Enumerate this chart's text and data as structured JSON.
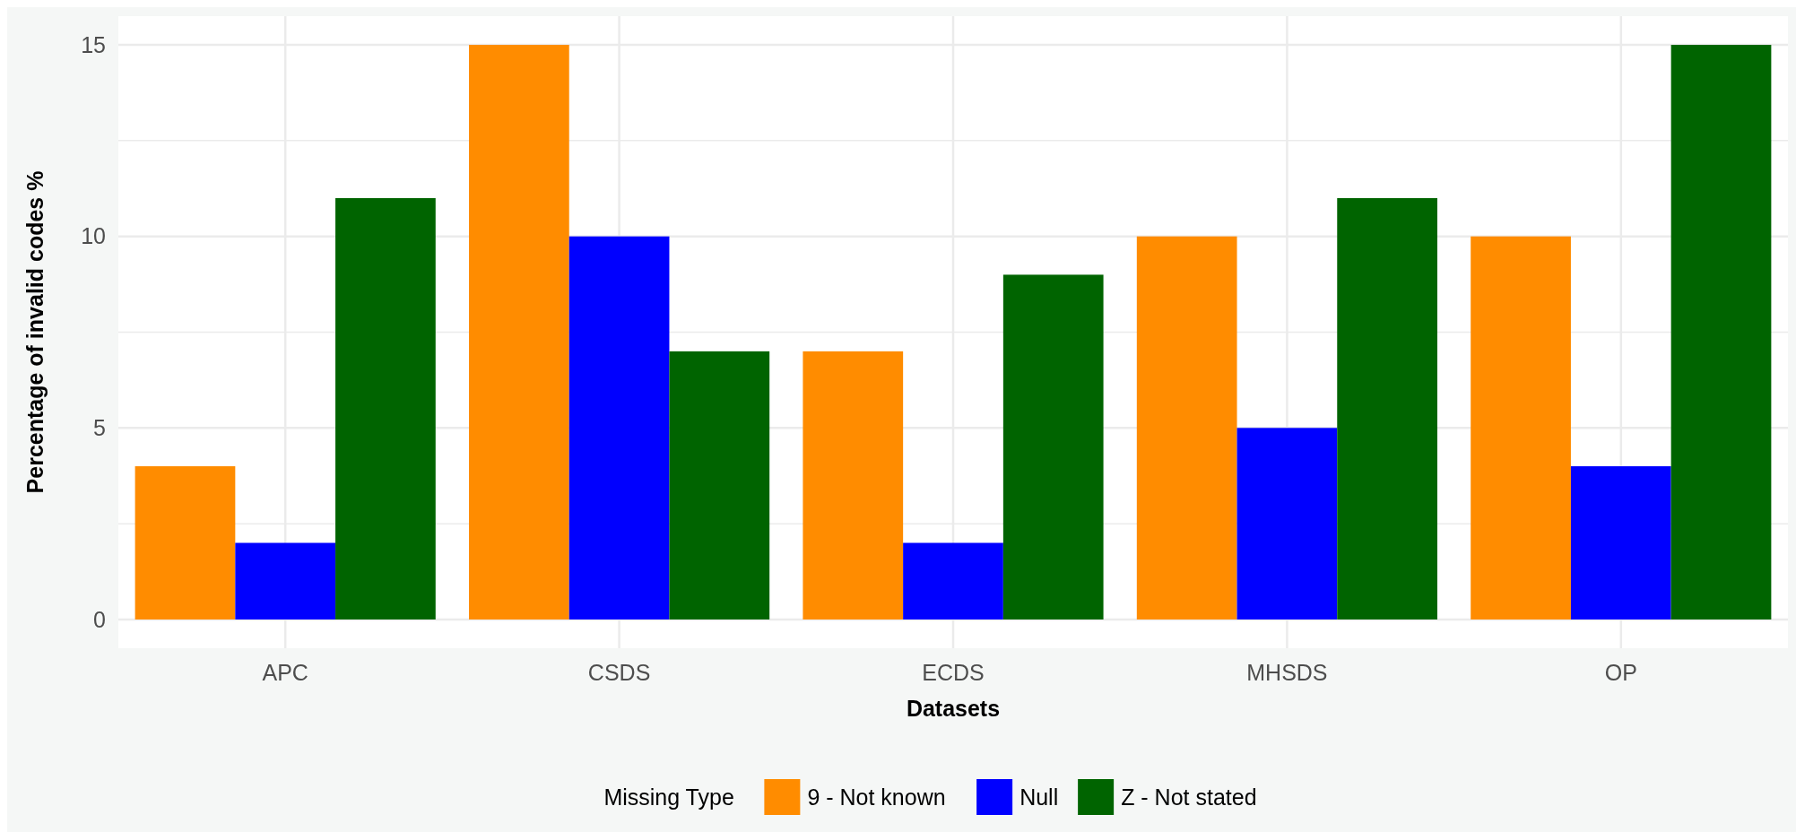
{
  "chart_data": {
    "type": "bar",
    "xlabel": "Datasets",
    "ylabel": "Percentage of invalid codes %",
    "legend_title": "Missing Type",
    "categories": [
      "APC",
      "CSDS",
      "ECDS",
      "MHSDS",
      "OP"
    ],
    "series": [
      {
        "name": "9 - Not known",
        "color": "#ff8c00",
        "values": [
          4,
          15,
          7,
          10,
          10
        ]
      },
      {
        "name": "Null",
        "color": "#0000ff",
        "values": [
          2,
          10,
          2,
          5,
          4
        ]
      },
      {
        "name": "Z - Not stated",
        "color": "#006400",
        "values": [
          11,
          7,
          9,
          11,
          15
        ]
      }
    ],
    "ylim": [
      -0.75,
      15.75
    ],
    "yticks": [
      0,
      {
        "value": 2.5,
        "label": null
      },
      5,
      {
        "value": 7.5,
        "label": null
      },
      10,
      {
        "value": 12.5,
        "label": null
      },
      15
    ],
    "grid": true,
    "legend": "bottom"
  }
}
